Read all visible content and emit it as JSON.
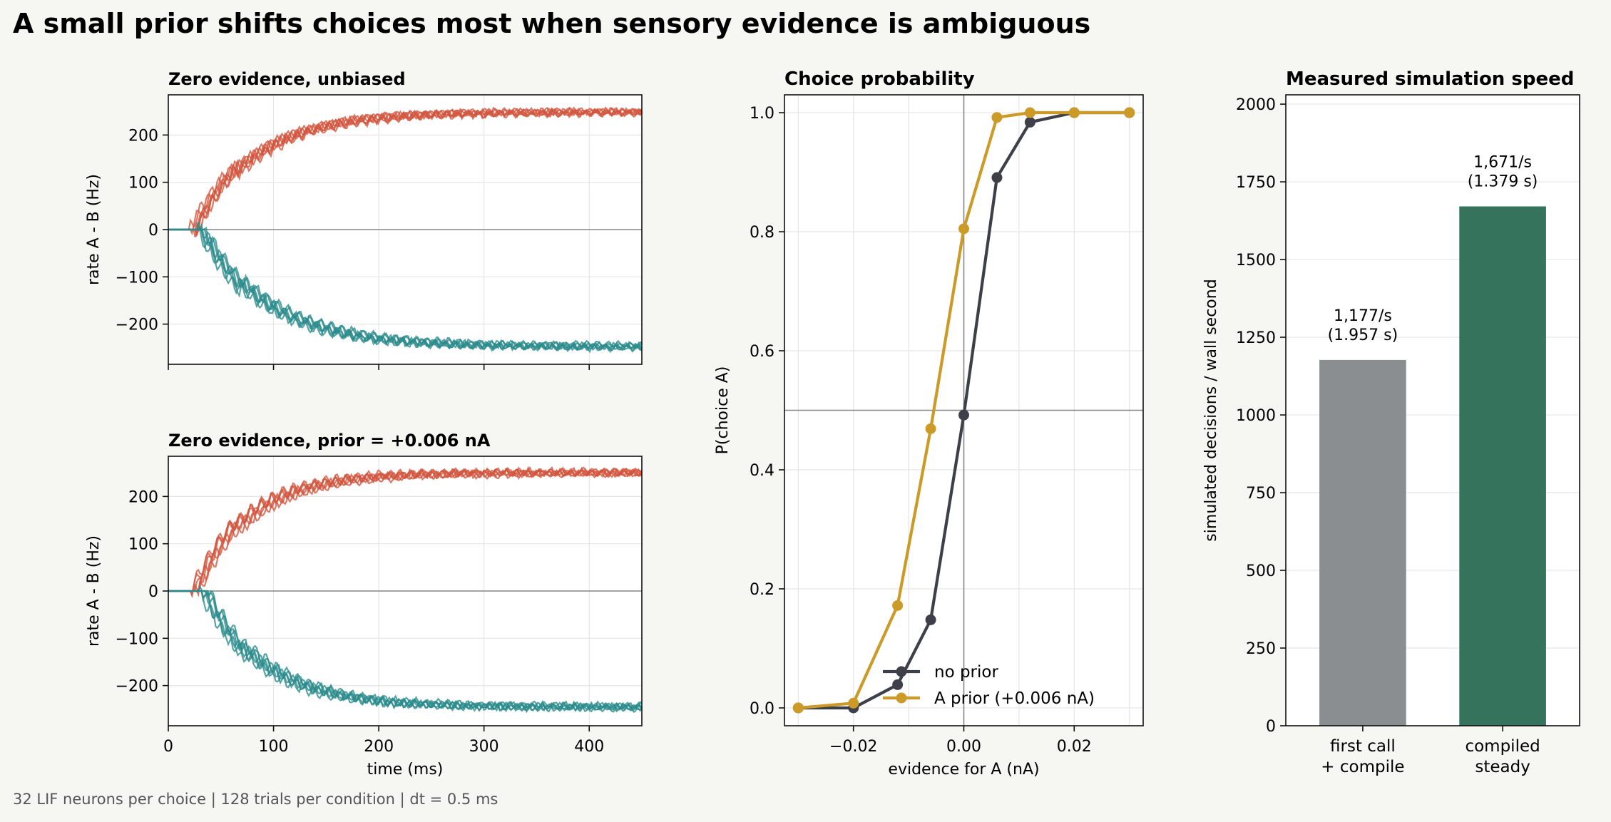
{
  "figure": {
    "title": "A small prior shifts choices most when sensory evidence is ambiguous",
    "footnote": "32 LIF neurons per choice | 128 trials per condition | dt = 0.5 ms",
    "background": "#f6f6f2"
  },
  "colors": {
    "trace_a": "#d2553d",
    "trace_b": "#2a8a8c",
    "no_prior": "#3d4048",
    "a_prior": "#cc9a27",
    "bar_first": "#8b8e91",
    "bar_compiled": "#35735c"
  },
  "chart_data": [
    {
      "type": "line",
      "title": "Zero evidence, unbiased",
      "xlabel": "",
      "ylabel": "rate A - B (Hz)",
      "xlim": [
        0,
        450
      ],
      "ylim": [
        -285,
        285
      ],
      "xticks": [
        0,
        100,
        200,
        300,
        400
      ],
      "yticks": [
        -200,
        -100,
        0,
        100,
        200
      ],
      "ytick_labels": [
        "−200",
        "−100",
        "0",
        "100",
        "200"
      ],
      "grid": true,
      "zero_line": true,
      "description_series": [
        {
          "name": "",
          "color_key": "trace_a",
          "onset": 25,
          "plateau": 248,
          "tau": 55,
          "x": [
            0,
            25,
            50,
            100,
            150,
            200,
            250,
            300,
            350,
            400,
            450
          ],
          "values": [
            0,
            0,
            60,
            160,
            212,
            237,
            246,
            249,
            250,
            250,
            250
          ]
        },
        {
          "name": "",
          "color_key": "trace_b",
          "onset": 30,
          "plateau": -248,
          "tau": 60,
          "x": [
            0,
            30,
            50,
            100,
            150,
            200,
            250,
            300,
            350,
            400,
            450
          ],
          "values": [
            0,
            0,
            -60,
            -150,
            -203,
            -230,
            -242,
            -247,
            -248,
            -249,
            -249
          ]
        }
      ]
    },
    {
      "type": "line",
      "title": "Zero evidence, prior = +0.006 nA",
      "xlabel": "time (ms)",
      "ylabel": "rate A - B (Hz)",
      "xlim": [
        0,
        450
      ],
      "ylim": [
        -285,
        285
      ],
      "xticks": [
        0,
        100,
        200,
        300,
        400
      ],
      "yticks": [
        -200,
        -100,
        0,
        100,
        200
      ],
      "ytick_labels": [
        "−200",
        "−100",
        "0",
        "100",
        "200"
      ],
      "grid": true,
      "zero_line": true,
      "description_series": [
        {
          "name": "",
          "color_key": "trace_a",
          "onset": 25,
          "plateau": 250,
          "tau": 52,
          "x": [
            0,
            25,
            50,
            100,
            150,
            200,
            250,
            300,
            350,
            400,
            450
          ],
          "values": [
            0,
            0,
            70,
            165,
            215,
            238,
            247,
            250,
            251,
            251,
            251
          ]
        },
        {
          "name": "",
          "color_key": "trace_b",
          "onset": 33,
          "plateau": -246,
          "tau": 58,
          "x": [
            0,
            33,
            50,
            100,
            150,
            200,
            250,
            300,
            350,
            400,
            450
          ],
          "values": [
            0,
            0,
            -45,
            -145,
            -200,
            -228,
            -240,
            -245,
            -246,
            -246,
            -246
          ]
        }
      ]
    },
    {
      "type": "line",
      "title": "Choice probability",
      "xlabel": "evidence for A (nA)",
      "ylabel": "P(choice A)",
      "xlim": [
        -0.0325,
        0.0325
      ],
      "ylim": [
        -0.03,
        1.03
      ],
      "xticks": [
        -0.02,
        0,
        0.02
      ],
      "xtick_labels": [
        "−0.02",
        "0.00",
        "0.02"
      ],
      "yticks": [
        0,
        0.2,
        0.4,
        0.6,
        0.8,
        1.0
      ],
      "ytick_labels": [
        "0.0",
        "0.2",
        "0.4",
        "0.6",
        "0.8",
        "1.0"
      ],
      "grid": true,
      "reference_lines": {
        "x": 0,
        "y": 0.5
      },
      "legend": "lower-right",
      "x": [
        -0.03,
        -0.02,
        -0.012,
        -0.006,
        0,
        0.006,
        0.012,
        0.02,
        0.03
      ],
      "series": [
        {
          "name": "no prior",
          "color_key": "no_prior",
          "values": [
            0.0,
            0.0,
            0.039,
            0.148,
            0.492,
            0.891,
            0.984,
            1.0,
            1.0
          ]
        },
        {
          "name": "A prior (+0.006 nA)",
          "color_key": "a_prior",
          "values": [
            0.0,
            0.008,
            0.172,
            0.469,
            0.805,
            0.992,
            1.0,
            1.0,
            1.0
          ]
        }
      ]
    },
    {
      "type": "bar",
      "title": "Measured simulation speed",
      "xlabel": "",
      "ylabel": "simulated decisions / wall second",
      "ylim": [
        0,
        2030
      ],
      "yticks": [
        0,
        250,
        500,
        750,
        1000,
        1250,
        1500,
        1750,
        2000
      ],
      "grid": true,
      "categories": [
        "first call\n+ compile",
        "compiled\nsteady"
      ],
      "values": [
        1177,
        1671
      ],
      "color_keys": [
        "bar_first",
        "bar_compiled"
      ],
      "bar_labels": [
        [
          "1,177/s",
          "(1.957 s)"
        ],
        [
          "1,671/s",
          "(1.379 s)"
        ]
      ]
    }
  ]
}
